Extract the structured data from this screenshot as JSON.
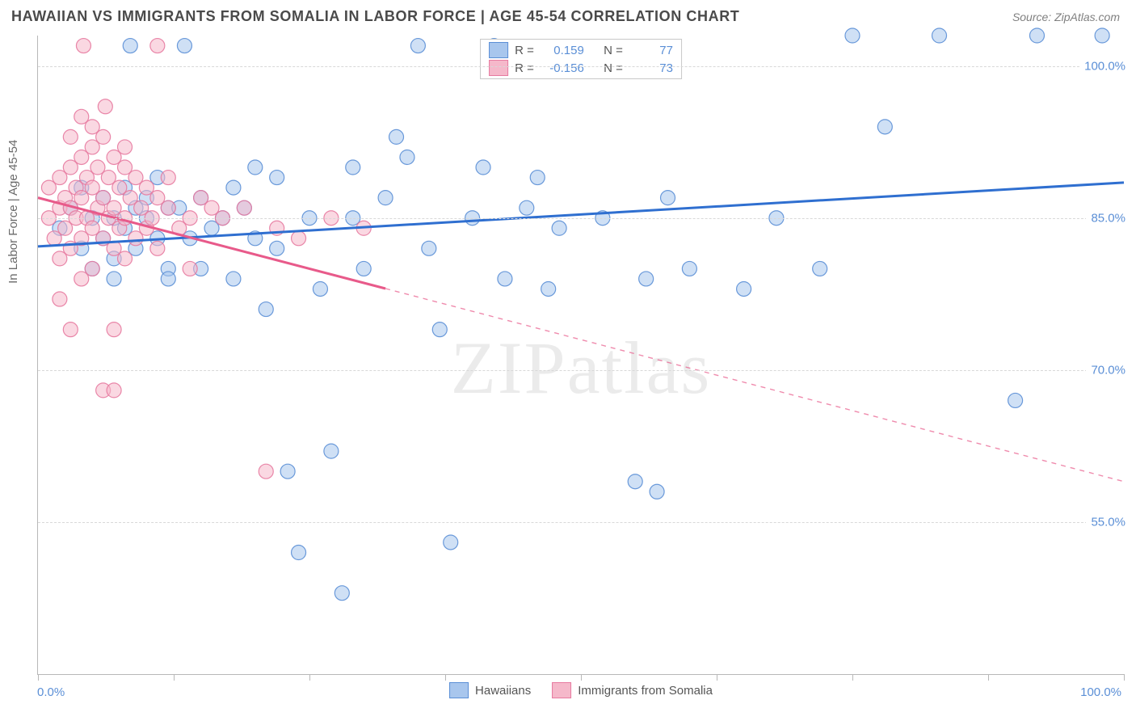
{
  "title": "HAWAIIAN VS IMMIGRANTS FROM SOMALIA IN LABOR FORCE | AGE 45-54 CORRELATION CHART",
  "source_label": "Source: ",
  "source_name": "ZipAtlas.com",
  "watermark": "ZIPatlas",
  "yaxis_title": "In Labor Force | Age 45-54",
  "chart": {
    "type": "scatter",
    "xlim": [
      0,
      100
    ],
    "ylim": [
      40,
      103
    ],
    "xtick_positions": [
      0,
      12.5,
      25,
      37.5,
      50,
      62.5,
      75,
      87.5,
      100
    ],
    "xtick_labels": {
      "0": "0.0%",
      "100": "100.0%"
    },
    "ytick_positions": [
      55,
      70,
      85,
      100
    ],
    "ytick_labels": {
      "55": "55.0%",
      "70": "70.0%",
      "85": "85.0%",
      "100": "100.0%"
    },
    "grid_color": "#d8d8d8",
    "axis_color": "#b8b8b8",
    "background_color": "#ffffff",
    "marker_radius": 9,
    "marker_opacity": 0.55,
    "series": [
      {
        "name": "Hawaiians",
        "color_fill": "#a8c6ed",
        "color_stroke": "#5b8fd6",
        "trend_color": "#2f6fd0",
        "r_value": "0.159",
        "n_value": "77",
        "trend": {
          "x1": 0,
          "y1": 82.2,
          "x2": 100,
          "y2": 88.5,
          "solid_until_x": 100
        },
        "points": [
          [
            2,
            84
          ],
          [
            3,
            86
          ],
          [
            4,
            82
          ],
          [
            4,
            88
          ],
          [
            5,
            85
          ],
          [
            5,
            80
          ],
          [
            6,
            83
          ],
          [
            6,
            87
          ],
          [
            7,
            85
          ],
          [
            7,
            81
          ],
          [
            8,
            84
          ],
          [
            8,
            88
          ],
          [
            8.5,
            102
          ],
          [
            9,
            86
          ],
          [
            9,
            82
          ],
          [
            10,
            85
          ],
          [
            10,
            87
          ],
          [
            11,
            83
          ],
          [
            11,
            89
          ],
          [
            12,
            86
          ],
          [
            12,
            80
          ],
          [
            13,
            86
          ],
          [
            13.5,
            102
          ],
          [
            14,
            83
          ],
          [
            15,
            87
          ],
          [
            15,
            80
          ],
          [
            16,
            84
          ],
          [
            17,
            85
          ],
          [
            18,
            79
          ],
          [
            19,
            86
          ],
          [
            20,
            83
          ],
          [
            20,
            90
          ],
          [
            21,
            76
          ],
          [
            22,
            89
          ],
          [
            22,
            82
          ],
          [
            23,
            60
          ],
          [
            24,
            52
          ],
          [
            25,
            85
          ],
          [
            26,
            78
          ],
          [
            27,
            62
          ],
          [
            28,
            48
          ],
          [
            29,
            90
          ],
          [
            29,
            85
          ],
          [
            30,
            80
          ],
          [
            32,
            87
          ],
          [
            33,
            93
          ],
          [
            34,
            91
          ],
          [
            36,
            82
          ],
          [
            37,
            74
          ],
          [
            38,
            53
          ],
          [
            40,
            85
          ],
          [
            41,
            90
          ],
          [
            42,
            102
          ],
          [
            43,
            79
          ],
          [
            45,
            86
          ],
          [
            46,
            89
          ],
          [
            47,
            78
          ],
          [
            48,
            84
          ],
          [
            52,
            85
          ],
          [
            55,
            59
          ],
          [
            56,
            79
          ],
          [
            57,
            58
          ],
          [
            58,
            87
          ],
          [
            60,
            80
          ],
          [
            65,
            78
          ],
          [
            68,
            85
          ],
          [
            72,
            80
          ],
          [
            75,
            103
          ],
          [
            78,
            94
          ],
          [
            83,
            103
          ],
          [
            90,
            67
          ],
          [
            92,
            103
          ],
          [
            98,
            103
          ],
          [
            35,
            102
          ],
          [
            7,
            79
          ],
          [
            12,
            79
          ],
          [
            18,
            88
          ]
        ]
      },
      {
        "name": "Immigrants from Somalia",
        "color_fill": "#f5b8ca",
        "color_stroke": "#e77aa0",
        "trend_color": "#e85a8a",
        "r_value": "-0.156",
        "n_value": "73",
        "trend": {
          "x1": 0,
          "y1": 87.0,
          "x2": 100,
          "y2": 59.0,
          "solid_until_x": 32
        },
        "points": [
          [
            1,
            88
          ],
          [
            1,
            85
          ],
          [
            1.5,
            83
          ],
          [
            2,
            86
          ],
          [
            2,
            89
          ],
          [
            2,
            81
          ],
          [
            2.5,
            87
          ],
          [
            2.5,
            84
          ],
          [
            3,
            90
          ],
          [
            3,
            86
          ],
          [
            3,
            82
          ],
          [
            3.5,
            88
          ],
          [
            3.5,
            85
          ],
          [
            4,
            91
          ],
          [
            4,
            87
          ],
          [
            4,
            83
          ],
          [
            4.2,
            102
          ],
          [
            4.5,
            89
          ],
          [
            4.5,
            85
          ],
          [
            5,
            92
          ],
          [
            5,
            88
          ],
          [
            5,
            84
          ],
          [
            5,
            80
          ],
          [
            5.5,
            90
          ],
          [
            5.5,
            86
          ],
          [
            6,
            93
          ],
          [
            6,
            87
          ],
          [
            6,
            83
          ],
          [
            6.2,
            96
          ],
          [
            6.5,
            89
          ],
          [
            6.5,
            85
          ],
          [
            7,
            91
          ],
          [
            7,
            86
          ],
          [
            7,
            82
          ],
          [
            7.5,
            88
          ],
          [
            7.5,
            84
          ],
          [
            8,
            90
          ],
          [
            8,
            85
          ],
          [
            8,
            81
          ],
          [
            8.5,
            87
          ],
          [
            9,
            89
          ],
          [
            9,
            83
          ],
          [
            9.5,
            86
          ],
          [
            10,
            88
          ],
          [
            10,
            84
          ],
          [
            10.5,
            85
          ],
          [
            11,
            87
          ],
          [
            11,
            82
          ],
          [
            12,
            86
          ],
          [
            12,
            89
          ],
          [
            13,
            84
          ],
          [
            14,
            85
          ],
          [
            15,
            87
          ],
          [
            16,
            86
          ],
          [
            2,
            77
          ],
          [
            3,
            74
          ],
          [
            4,
            79
          ],
          [
            6,
            68
          ],
          [
            7,
            68
          ],
          [
            7,
            74
          ],
          [
            4,
            95
          ],
          [
            3,
            93
          ],
          [
            5,
            94
          ],
          [
            8,
            92
          ],
          [
            11,
            102
          ],
          [
            17,
            85
          ],
          [
            19,
            86
          ],
          [
            22,
            84
          ],
          [
            24,
            83
          ],
          [
            27,
            85
          ],
          [
            30,
            84
          ],
          [
            21,
            60
          ],
          [
            14,
            80
          ]
        ]
      }
    ]
  },
  "legend": {
    "r_label": "R =",
    "n_label": "N ="
  }
}
